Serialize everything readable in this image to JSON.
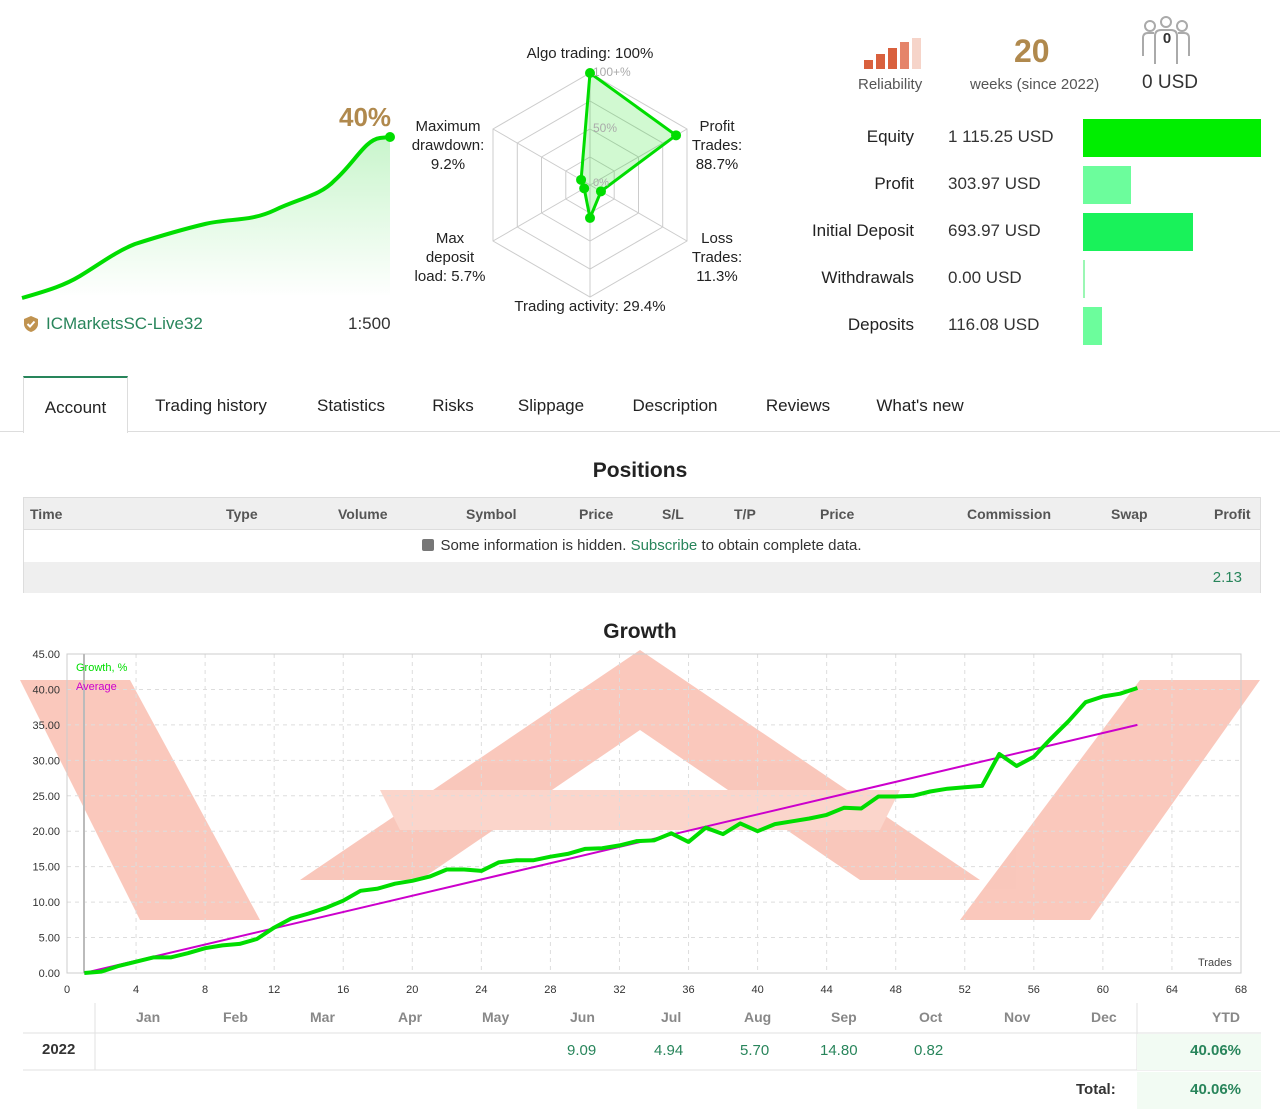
{
  "summary": {
    "growth_pct": "40%",
    "broker": "ICMarketsSC-Live32",
    "leverage": "1:500"
  },
  "radar": {
    "algo_label": "Algo trading: 100%",
    "profit_label": [
      "Profit",
      "Trades:",
      "88.7%"
    ],
    "loss_label": [
      "Loss",
      "Trades:",
      "11.3%"
    ],
    "activity_label": "Trading activity: 29.4%",
    "deposit_load_label": [
      "Max",
      "deposit",
      "load: 5.7%"
    ],
    "drawdown_label": [
      "Maximum",
      "drawdown:",
      "9.2%"
    ],
    "ring_100": "100+%",
    "ring_50": "50%",
    "ring_0": "0%",
    "values": {
      "algo": 1.0,
      "profit": 0.887,
      "loss": 0.113,
      "activity": 0.294,
      "deposit_load": 0.057,
      "drawdown": 0.092
    }
  },
  "stats": {
    "reliability_label": "Reliability",
    "weeks": "20",
    "weeks_label": "weeks (since 2022)",
    "subscribers": "0",
    "subscribers_usd": "0 USD",
    "rows": [
      {
        "label": "Equity",
        "value": "1 115.25 USD",
        "fraction": 1.0,
        "color": "#00ee00"
      },
      {
        "label": "Profit",
        "value": "303.97 USD",
        "fraction": 0.27,
        "color": "#6cfd9c"
      },
      {
        "label": "Initial Deposit",
        "value": "693.97 USD",
        "fraction": 0.62,
        "color": "#19f25a"
      },
      {
        "label": "Withdrawals",
        "value": "0.00 USD",
        "fraction": 0.005,
        "color": "#9bf7b4"
      },
      {
        "label": "Deposits",
        "value": "116.08 USD",
        "fraction": 0.104,
        "color": "#6cfd9c"
      }
    ]
  },
  "tabs": [
    "Account",
    "Trading history",
    "Statistics",
    "Risks",
    "Slippage",
    "Description",
    "Reviews",
    "What's new"
  ],
  "positions": {
    "title": "Positions",
    "columns": [
      "Time",
      "Type",
      "Volume",
      "Symbol",
      "Price",
      "S/L",
      "T/P",
      "Price",
      "Commission",
      "Swap",
      "Profit"
    ],
    "info_pre": "Some information is hidden.",
    "info_link": "Subscribe",
    "info_post": "to obtain complete data.",
    "total_profit": "2.13"
  },
  "chart_data": {
    "type": "line",
    "title": "Growth",
    "xlabel": "Trades",
    "ylabel": "",
    "xlim": [
      0,
      68
    ],
    "ylim": [
      0,
      45
    ],
    "xticks": [
      0,
      4,
      8,
      12,
      16,
      20,
      24,
      28,
      32,
      36,
      40,
      44,
      48,
      52,
      56,
      60,
      64,
      68
    ],
    "yticks": [
      "0.00",
      "5.00",
      "10.00",
      "15.00",
      "20.00",
      "25.00",
      "30.00",
      "35.00",
      "40.00",
      "45.00"
    ],
    "series": [
      {
        "name": "Growth, %",
        "color": "#00dd00",
        "x": [
          1,
          2,
          3,
          4,
          5,
          6,
          7,
          8,
          9,
          10,
          11,
          12,
          13,
          14,
          15,
          16,
          17,
          18,
          19,
          20,
          21,
          22,
          23,
          24,
          25,
          26,
          27,
          28,
          29,
          30,
          31,
          32,
          33,
          34,
          35,
          36,
          37,
          38,
          39,
          40,
          41,
          42,
          43,
          44,
          45,
          46,
          47,
          48,
          49,
          50,
          51,
          52,
          53,
          54,
          55,
          56,
          57,
          58,
          59,
          60,
          61,
          62
        ],
        "y": [
          0.0,
          0.2,
          1.0,
          1.6,
          2.2,
          2.2,
          2.8,
          3.5,
          3.9,
          4.1,
          4.8,
          6.4,
          7.7,
          8.4,
          9.2,
          10.2,
          11.6,
          11.9,
          12.6,
          13.0,
          13.6,
          14.6,
          14.6,
          14.4,
          15.6,
          15.9,
          15.9,
          16.4,
          16.8,
          17.5,
          17.6,
          18.0,
          18.6,
          18.7,
          19.7,
          18.5,
          20.5,
          19.6,
          21.1,
          20.0,
          21.0,
          21.4,
          21.8,
          22.3,
          23.3,
          23.2,
          24.9,
          24.9,
          25.0,
          25.6,
          26.0,
          26.2,
          26.4,
          30.9,
          29.2,
          30.5,
          33.1,
          35.5,
          38.2,
          39.0,
          39.4,
          40.2
        ]
      },
      {
        "name": "Average",
        "color": "#cc00cc",
        "x": [
          1,
          62
        ],
        "y": [
          0.0,
          35.0
        ]
      }
    ]
  },
  "year_table": {
    "months": [
      "Jan",
      "Feb",
      "Mar",
      "Apr",
      "May",
      "Jun",
      "Jul",
      "Aug",
      "Sep",
      "Oct",
      "Nov",
      "Dec",
      "YTD"
    ],
    "year": "2022",
    "values": [
      "",
      "",
      "",
      "",
      "",
      "9.09",
      "4.94",
      "5.70",
      "14.80",
      "0.82",
      "",
      ""
    ],
    "ytd": "40.06%",
    "total_label": "Total:",
    "total": "40.06%"
  }
}
